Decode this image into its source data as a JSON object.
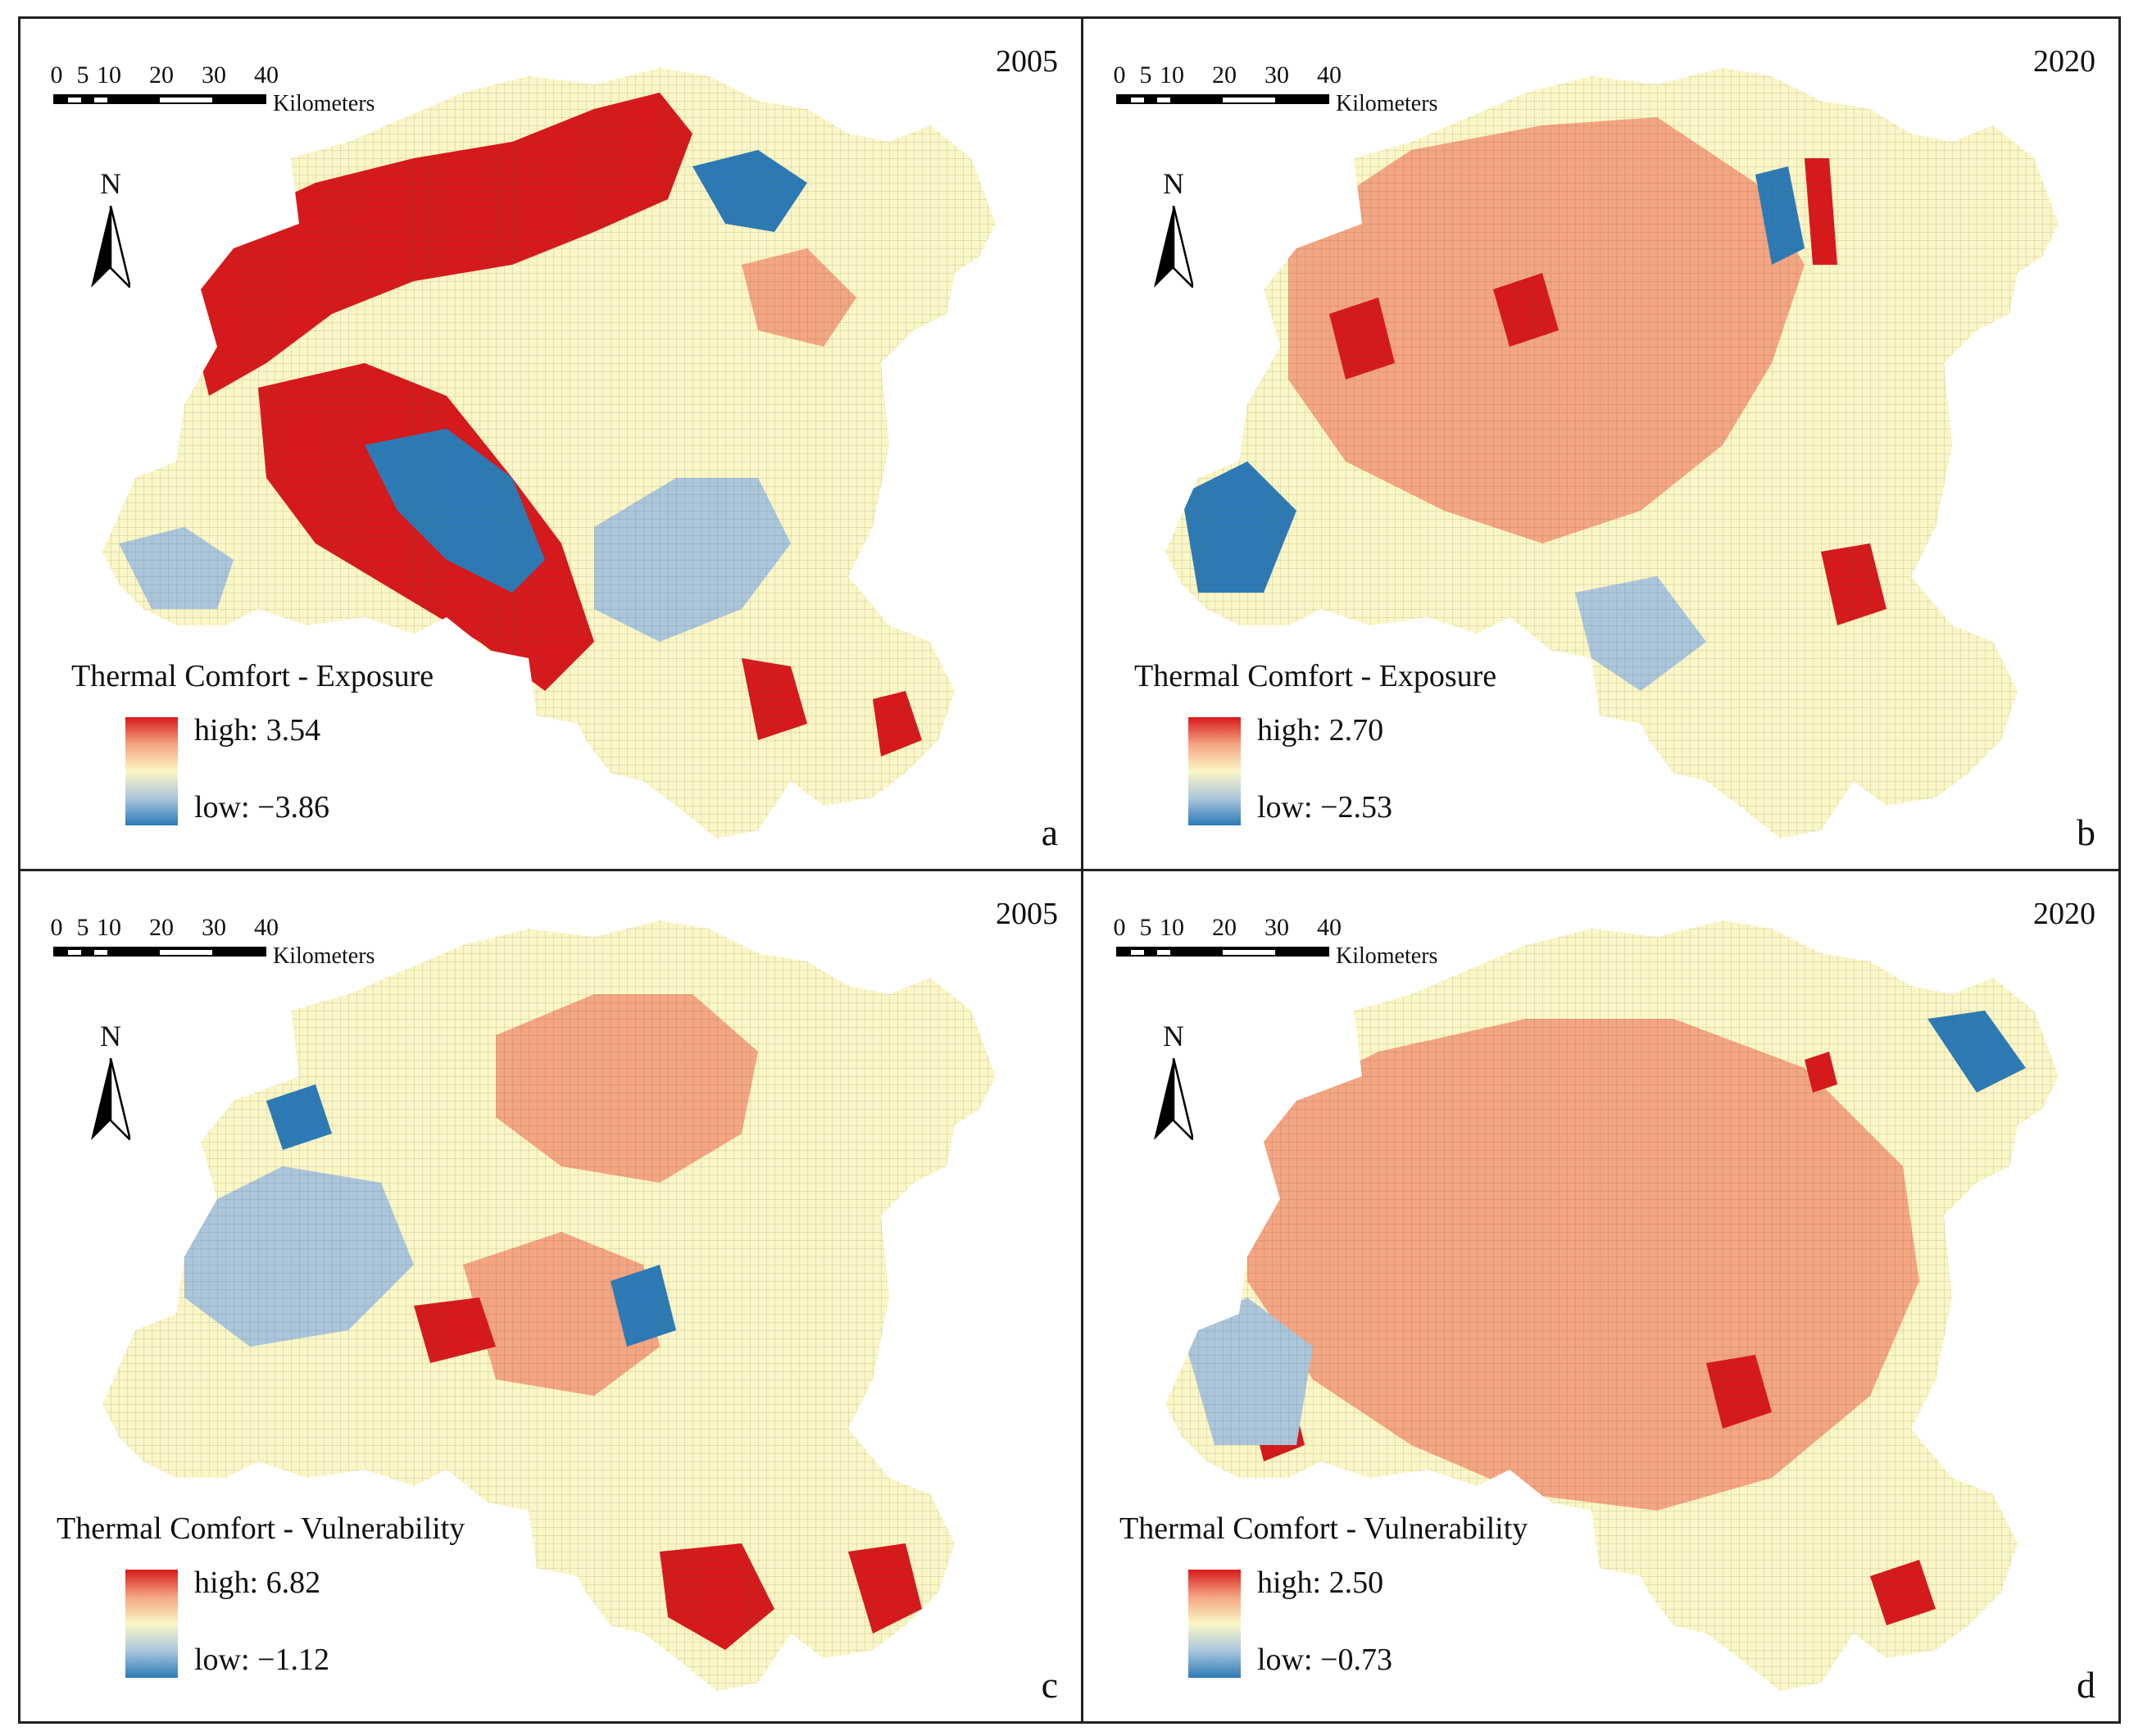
{
  "scale_bar": {
    "ticks": [
      "0",
      "5",
      "10",
      "20",
      "30",
      "40"
    ],
    "unit": "Kilometers"
  },
  "north_label": "N",
  "colors": {
    "high": "#d7191c",
    "mid_high": "#f4a582",
    "mid": "#fbf6c6",
    "mid_low": "#abc6dc",
    "low": "#2c7bb6"
  },
  "panels": [
    {
      "id": "a",
      "year": "2005",
      "letter": "a",
      "legend_title": "Thermal Comfort - Exposure",
      "high_label": "high: 3.54",
      "low_label": "low:  −3.86"
    },
    {
      "id": "b",
      "year": "2020",
      "letter": "b",
      "legend_title": "Thermal Comfort - Exposure",
      "high_label": "high: 2.70",
      "low_label": "low:  −2.53"
    },
    {
      "id": "c",
      "year": "2005",
      "letter": "c",
      "legend_title": "Thermal Comfort - Vulnerability",
      "high_label": "high: 6.82",
      "low_label": "low:  −1.12"
    },
    {
      "id": "d",
      "year": "2020",
      "letter": "d",
      "legend_title": "Thermal Comfort - Vulnerability",
      "high_label": "high: 2.50",
      "low_label": "low:  −0.73"
    }
  ]
}
